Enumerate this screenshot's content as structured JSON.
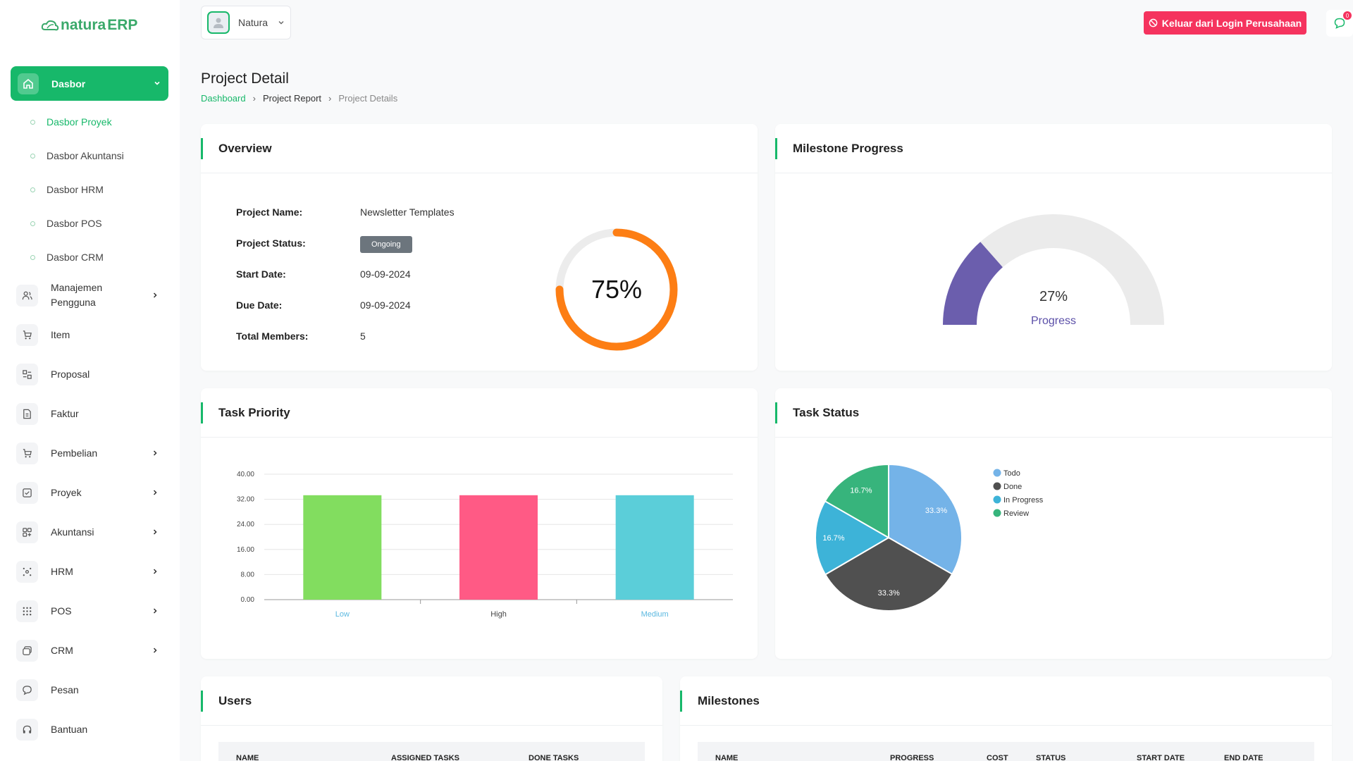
{
  "brand": {
    "logo_text_1": "natura",
    "logo_text_2": "ERP",
    "accent": "#17b86a"
  },
  "sidebar": {
    "main": {
      "label": "Dasbor",
      "icon": "home-icon"
    },
    "sub_items": [
      {
        "label": "Dasbor Proyek",
        "active": true
      },
      {
        "label": "Dasbor Akuntansi"
      },
      {
        "label": "Dasbor HRM"
      },
      {
        "label": "Dasbor POS"
      },
      {
        "label": "Dasbor CRM"
      }
    ],
    "items": [
      {
        "label": "Manajemen Pengguna",
        "icon": "users-icon",
        "chevron": true
      },
      {
        "label": "Item",
        "icon": "cart-icon"
      },
      {
        "label": "Proposal",
        "icon": "proposal-icon"
      },
      {
        "label": "Faktur",
        "icon": "invoice-icon"
      },
      {
        "label": "Pembelian",
        "icon": "cart-icon",
        "chevron": true
      },
      {
        "label": "Proyek",
        "icon": "checklist-icon",
        "chevron": true
      },
      {
        "label": "Akuntansi",
        "icon": "accounting-icon",
        "chevron": true
      },
      {
        "label": "HRM",
        "icon": "hrm-icon",
        "chevron": true
      },
      {
        "label": "POS",
        "icon": "grid-icon",
        "chevron": true
      },
      {
        "label": "CRM",
        "icon": "crm-icon",
        "chevron": true
      },
      {
        "label": "Pesan",
        "icon": "message-icon"
      },
      {
        "label": "Bantuan",
        "icon": "headset-icon"
      }
    ]
  },
  "topbar": {
    "company": "Natura",
    "logout_label": "Keluar dari Login Perusahaan",
    "message_badge": "0"
  },
  "page": {
    "title": "Project Detail",
    "breadcrumb": [
      "Dashboard",
      "Project Report",
      "Project Details"
    ]
  },
  "overview": {
    "title": "Overview",
    "rows": [
      {
        "key": "Project Name:",
        "value": "Newsletter Templates"
      },
      {
        "key": "Project Status:",
        "value": "Ongoing"
      },
      {
        "key": "Start Date:",
        "value": "09-09-2024"
      },
      {
        "key": "Due Date:",
        "value": "09-09-2024"
      },
      {
        "key": "Total Members:",
        "value": "5"
      }
    ],
    "progress_label": "75%",
    "progress": 0.75,
    "progress_color": "#fd7e14"
  },
  "milestone": {
    "title": "Milestone Progress",
    "value_label": "27%",
    "caption": "Progress",
    "progress": 0.27,
    "color": "#6b5ead"
  },
  "task_priority": {
    "title": "Task Priority"
  },
  "task_status": {
    "title": "Task Status"
  },
  "chart_data": [
    {
      "type": "bar",
      "categories": [
        "Low",
        "High",
        "Medium"
      ],
      "values": [
        33.3,
        33.3,
        33.3
      ],
      "colors": [
        "#82dd5f",
        "#ff5a85",
        "#5bced9"
      ],
      "category_colors": [
        "#5bb8e0",
        "#444444",
        "#5bb8e0"
      ],
      "yticks": [
        "0.00",
        "8.00",
        "16.00",
        "24.00",
        "32.00",
        "40.00"
      ],
      "ylim": [
        0,
        40
      ]
    },
    {
      "type": "pie",
      "categories": [
        "Todo",
        "Done",
        "In Progress",
        "Review"
      ],
      "values": [
        33.3,
        33.3,
        16.7,
        16.7
      ],
      "labels": [
        "33.3%",
        "33.3%",
        "16.7%",
        "16.7%"
      ],
      "colors": [
        "#74b3e8",
        "#505050",
        "#3db3d8",
        "#37b47c"
      ],
      "legend": "right"
    }
  ],
  "users": {
    "title": "Users",
    "columns": [
      "NAME",
      "ASSIGNED TASKS",
      "DONE TASKS"
    ]
  },
  "milestones": {
    "title": "Milestones",
    "columns": [
      "NAME",
      "PROGRESS",
      "COST",
      "STATUS",
      "START DATE",
      "END DATE"
    ]
  }
}
